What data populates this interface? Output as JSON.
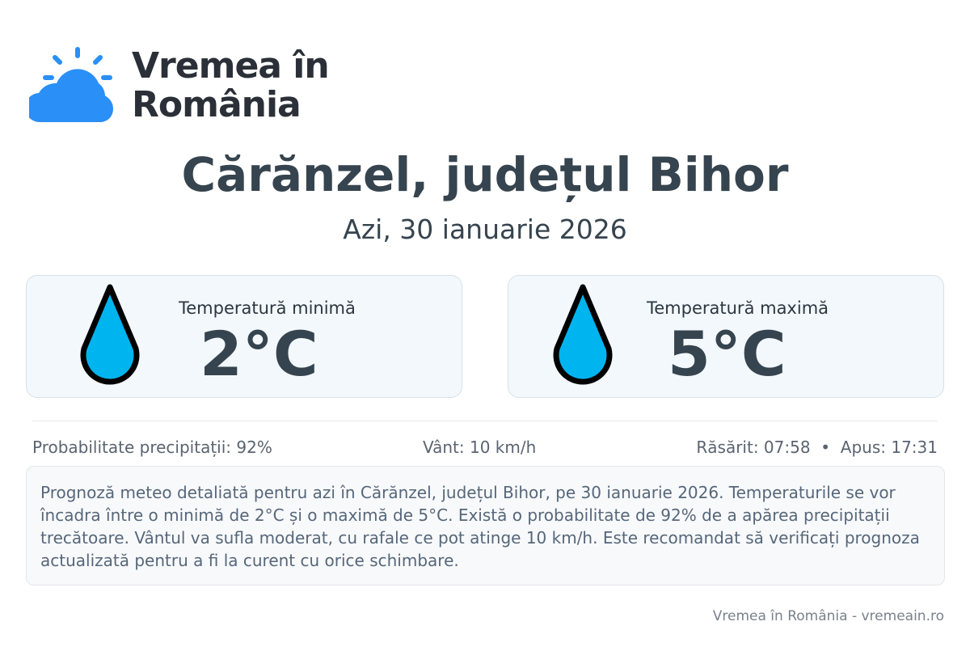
{
  "logo": {
    "line1": "Vremea în",
    "line2": "România",
    "icon": "sun-cloud-icon",
    "color": "#1e90ff"
  },
  "title": "Cărănzel, județul Bihor",
  "date": "Azi, 30 ianuarie 2026",
  "cards": [
    {
      "label": "Temperatură minimă",
      "value": "2°C",
      "icon": "water-drop-icon"
    },
    {
      "label": "Temperatură maximă",
      "value": "5°C",
      "icon": "water-drop-icon"
    }
  ],
  "stats": {
    "precip": "Probabilitate precipitații: 92%",
    "wind": "Vânt: 10 km/h",
    "sun": "Răsărit: 07:58  •  Apus: 17:31"
  },
  "description": "Prognoză meteo detaliată pentru azi în Cărănzel, județul Bihor, pe 30 ianuarie 2026. Temperaturile se vor încadra între o minimă de 2°C și o maximă de 5°C. Există o probabilitate de 92% de a apărea precipitații trecătoare. Vântul va sufla moderat, cu rafale ce pot atinge 10 km/h. Este recomandat să verificați prognoza actualizată pentru a fi la curent cu orice schimbare.",
  "footer": "Vremea în România - vremeain.ro",
  "colors": {
    "drop": "#00b4ef",
    "text": "#36444f"
  }
}
